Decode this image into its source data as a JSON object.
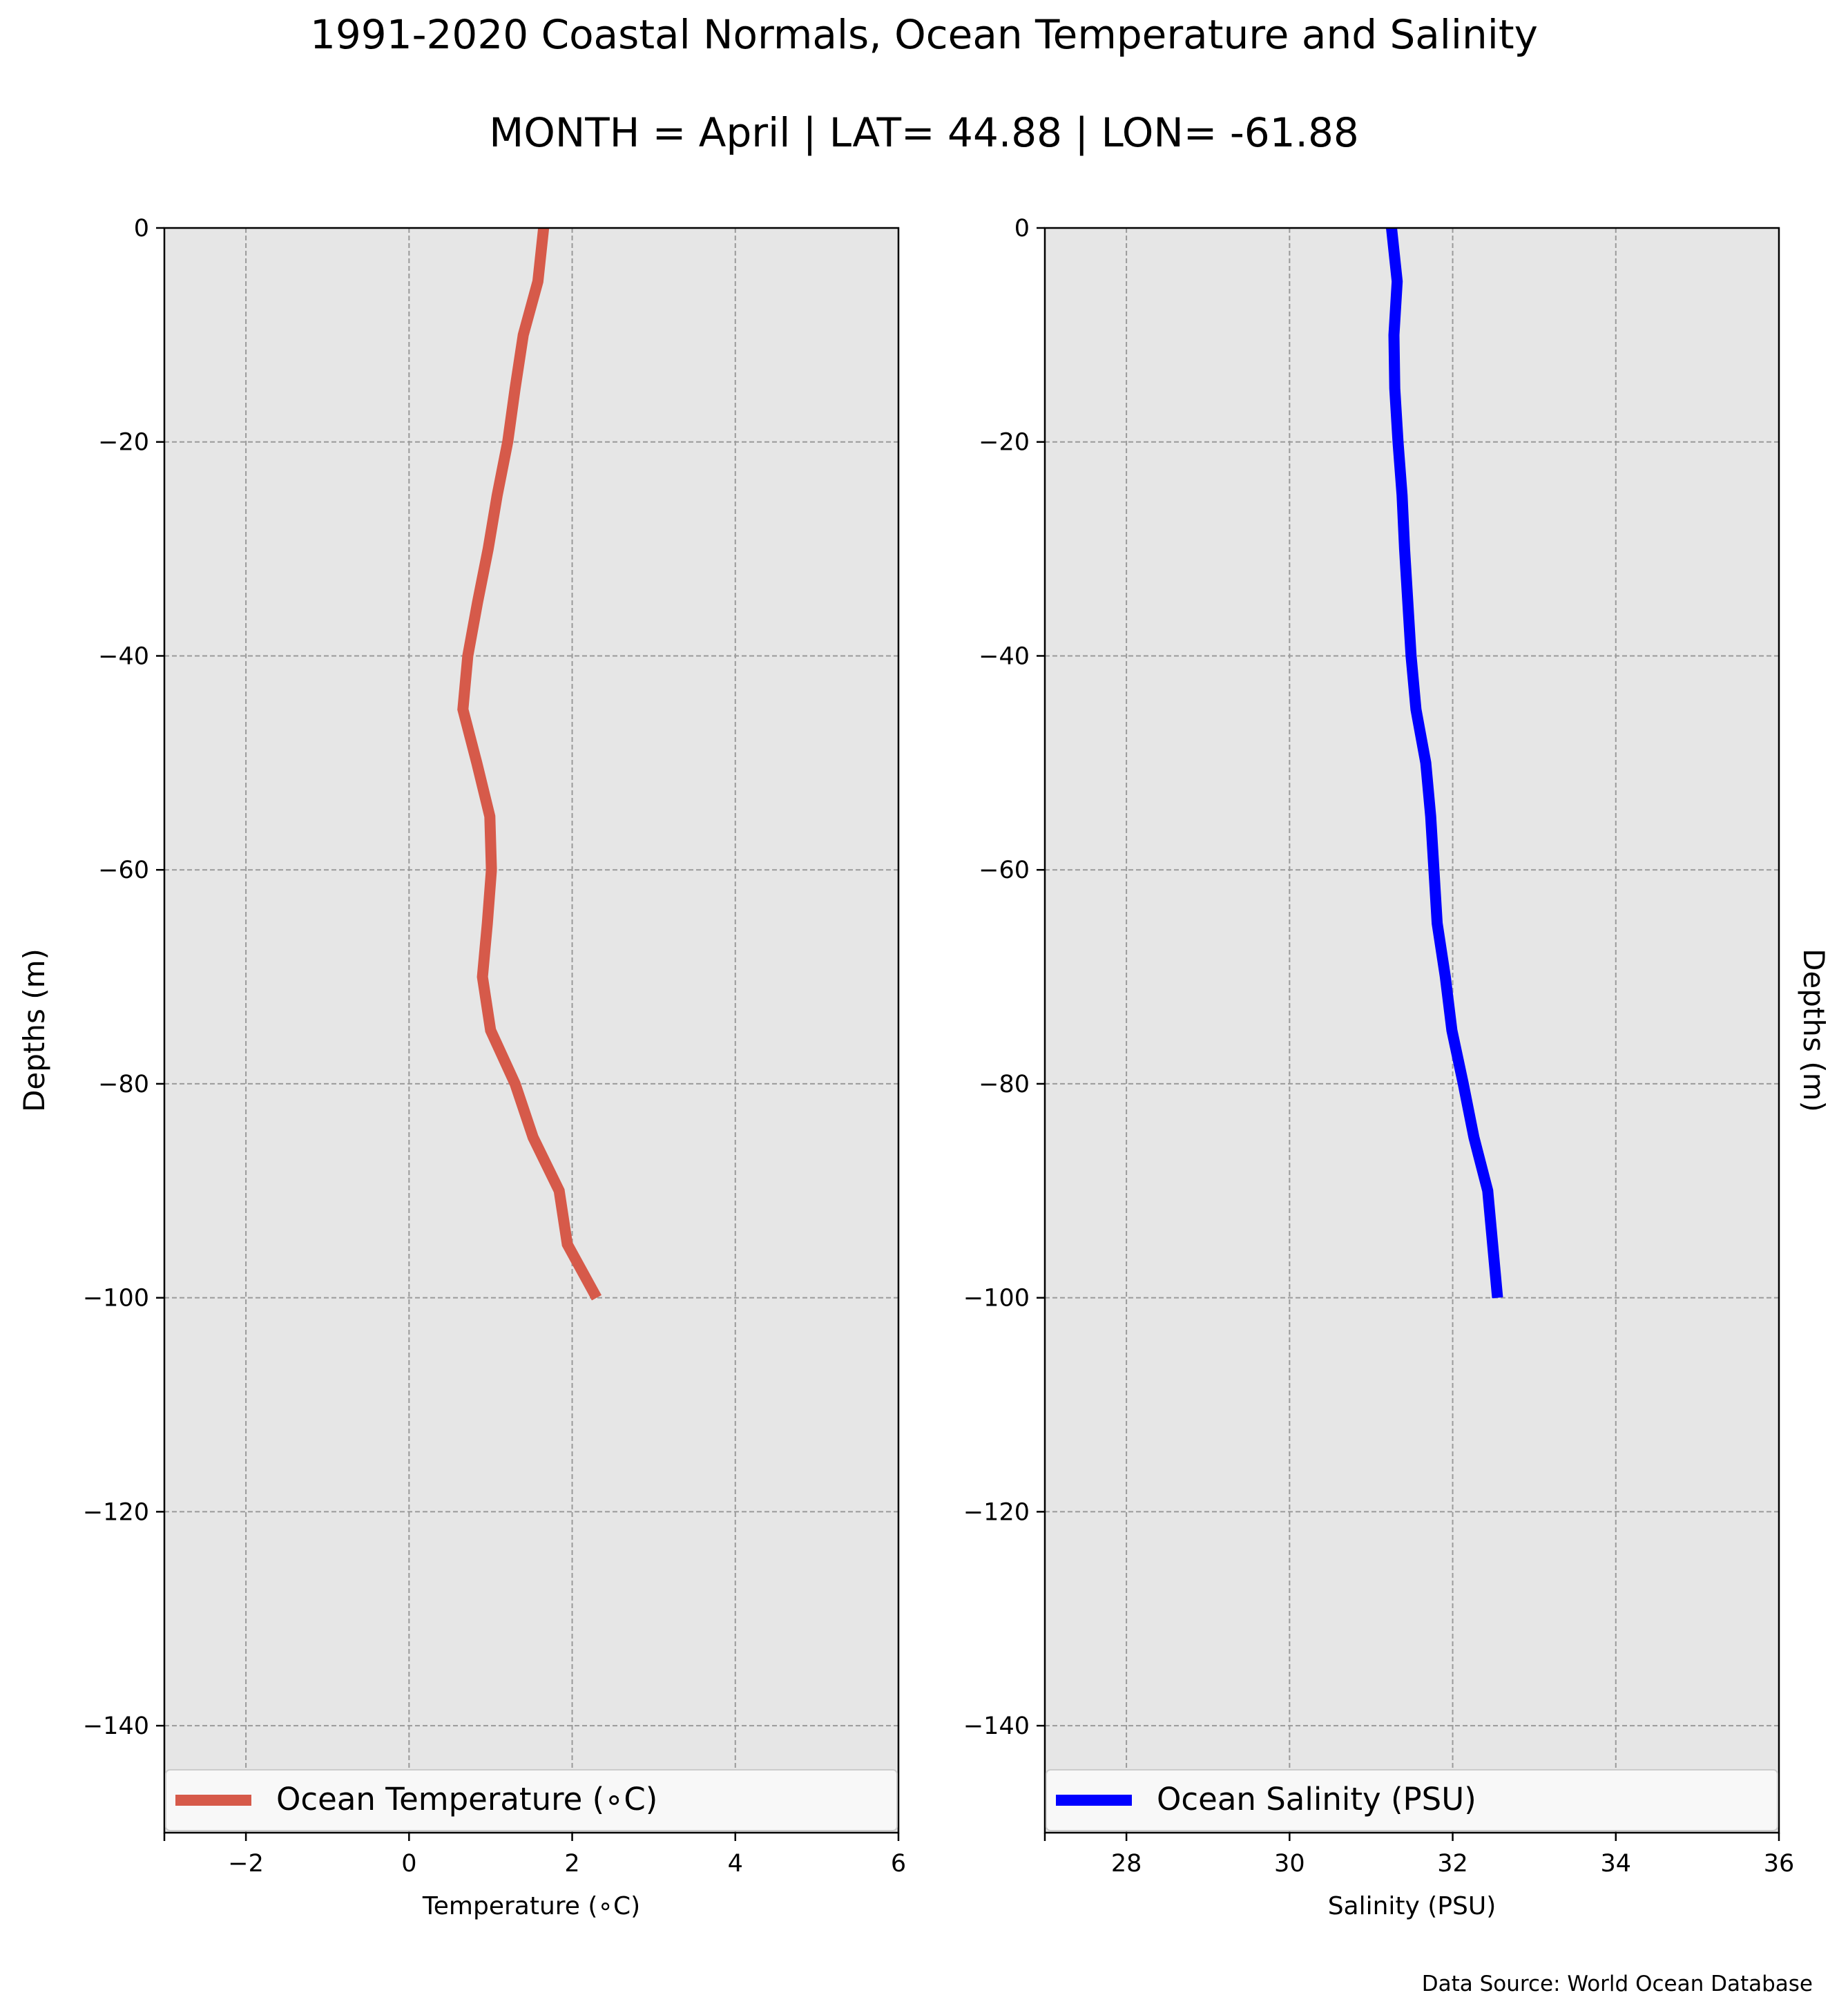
{
  "title": "1991-2020 Coastal Normals, Ocean Temperature and Salinity",
  "subtitle": "MONTH = April | LAT= 44.88 | LON= -61.88",
  "footer": "Data Source: World Ocean Database",
  "colors": {
    "temperature": "#d65a4a",
    "salinity": "#0000ff",
    "plot_bg": "#e6e6e6"
  },
  "chart_data": [
    {
      "type": "line",
      "xlabel": "Temperature ($^\\circ$C)",
      "xlabel_display": "Temperature (∘C)",
      "ylabel": "Depths (m)",
      "xlim": [
        -3,
        6
      ],
      "ylim": [
        -150,
        0
      ],
      "xticks": [
        -2,
        0,
        2,
        4,
        6
      ],
      "xtick_labels": [
        "−2",
        "0",
        "2",
        "4",
        "6"
      ],
      "yticks": [
        0,
        -20,
        -40,
        -60,
        -80,
        -100,
        -120,
        -140
      ],
      "ytick_labels": [
        "0",
        "−20",
        "−40",
        "−60",
        "−80",
        "−100",
        "−120",
        "−140"
      ],
      "grid": true,
      "legend_position": "lower center",
      "series": [
        {
          "name": "Ocean Temperature (∘C)",
          "color": "#d65a4a",
          "x": [
            1.65,
            1.58,
            1.4,
            1.3,
            1.21,
            1.08,
            0.97,
            0.84,
            0.72,
            0.66,
            0.83,
            0.99,
            1.01,
            0.96,
            0.9,
            1.0,
            1.3,
            1.52,
            1.84,
            1.94,
            2.3
          ],
          "y": [
            0,
            -5,
            -10,
            -15,
            -20,
            -25,
            -30,
            -35,
            -40,
            -45,
            -50,
            -55,
            -60,
            -65,
            -70,
            -75,
            -80,
            -85,
            -90,
            -95,
            -100
          ]
        }
      ]
    },
    {
      "type": "line",
      "xlabel": "Salinity (PSU)",
      "ylabel": "Depths (m)",
      "xlim": [
        27,
        36
      ],
      "ylim": [
        -150,
        0
      ],
      "xticks": [
        28,
        30,
        32,
        34,
        36
      ],
      "xtick_labels": [
        "28",
        "30",
        "32",
        "34",
        "36"
      ],
      "yticks": [
        0,
        -20,
        -40,
        -60,
        -80,
        -100,
        -120,
        -140
      ],
      "ytick_labels": [
        "0",
        "−20",
        "−40",
        "−60",
        "−80",
        "−100",
        "−120",
        "−140"
      ],
      "grid": true,
      "legend_position": "lower center",
      "series": [
        {
          "name": "Ocean Salinity (PSU)",
          "color": "#0000ff",
          "x": [
            31.25,
            31.32,
            31.28,
            31.29,
            31.33,
            31.38,
            31.41,
            31.45,
            31.49,
            31.55,
            31.67,
            31.73,
            31.77,
            31.81,
            31.91,
            31.99,
            32.13,
            32.26,
            32.43,
            32.49,
            32.55
          ],
          "y": [
            0,
            -5,
            -10,
            -15,
            -20,
            -25,
            -30,
            -35,
            -40,
            -45,
            -50,
            -55,
            -60,
            -65,
            -70,
            -75,
            -80,
            -85,
            -90,
            -95,
            -100
          ]
        }
      ]
    }
  ]
}
